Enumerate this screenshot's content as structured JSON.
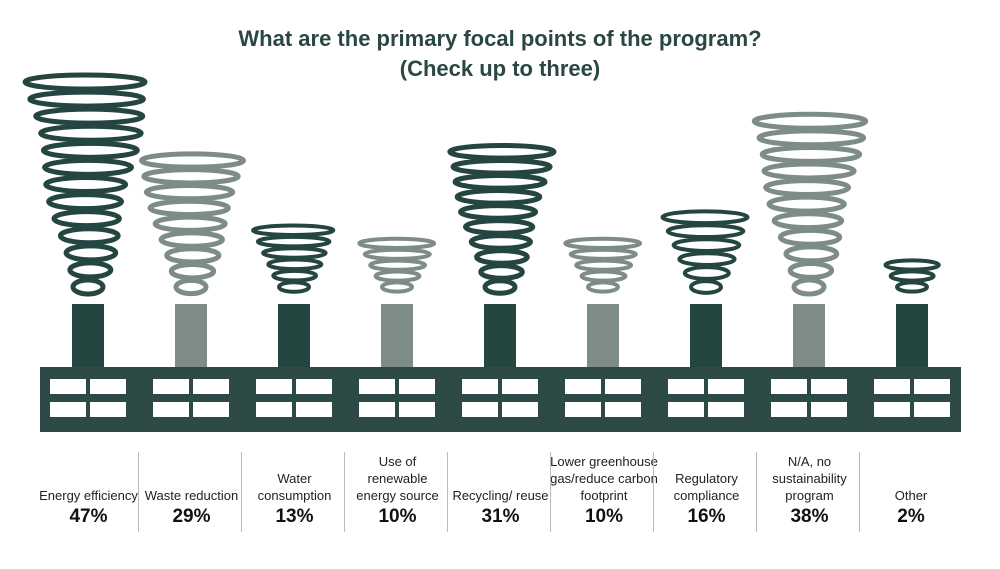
{
  "title_line1": "What are the primary focal points of the program?",
  "title_line2": "(Check up to three)",
  "colors": {
    "dark": "#254640",
    "light": "#7e8c89",
    "building": "#2d4a46",
    "window": "#ffffff",
    "title": "#2a4743"
  },
  "chart_data": {
    "type": "bar",
    "title": "What are the primary focal points of the program? (Check up to three)",
    "categories": [
      "Energy efficiency",
      "Waste reduction",
      "Water consumption",
      "Use of renewable energy source",
      "Recycling/ reuse",
      "Lower greenhouse gas/reduce carbon footprint",
      "Regulatory compliance",
      "N/A, no sustainability program",
      "Other"
    ],
    "values": [
      47,
      29,
      13,
      10,
      31,
      10,
      16,
      38,
      2
    ],
    "value_labels": [
      "47%",
      "29%",
      "13%",
      "10%",
      "31%",
      "10%",
      "16%",
      "38%",
      "2%"
    ],
    "units": "%"
  },
  "categories": [
    {
      "label": "Energy efficiency",
      "value": "47%",
      "tone": "dark"
    },
    {
      "label": "Waste reduction",
      "value": "29%",
      "tone": "light"
    },
    {
      "label": "Water consumption",
      "value": "13%",
      "tone": "dark"
    },
    {
      "label": "Use of renewable energy source",
      "value": "10%",
      "tone": "light"
    },
    {
      "label": "Recycling/ reuse",
      "value": "31%",
      "tone": "dark"
    },
    {
      "label": "Lower greenhouse gas/reduce carbon footprint",
      "value": "10%",
      "tone": "light"
    },
    {
      "label": "Regulatory compliance",
      "value": "16%",
      "tone": "dark"
    },
    {
      "label": "N/A, no sustainability program",
      "value": "38%",
      "tone": "light"
    },
    {
      "label": "Other",
      "value": "2%",
      "tone": "dark"
    }
  ]
}
